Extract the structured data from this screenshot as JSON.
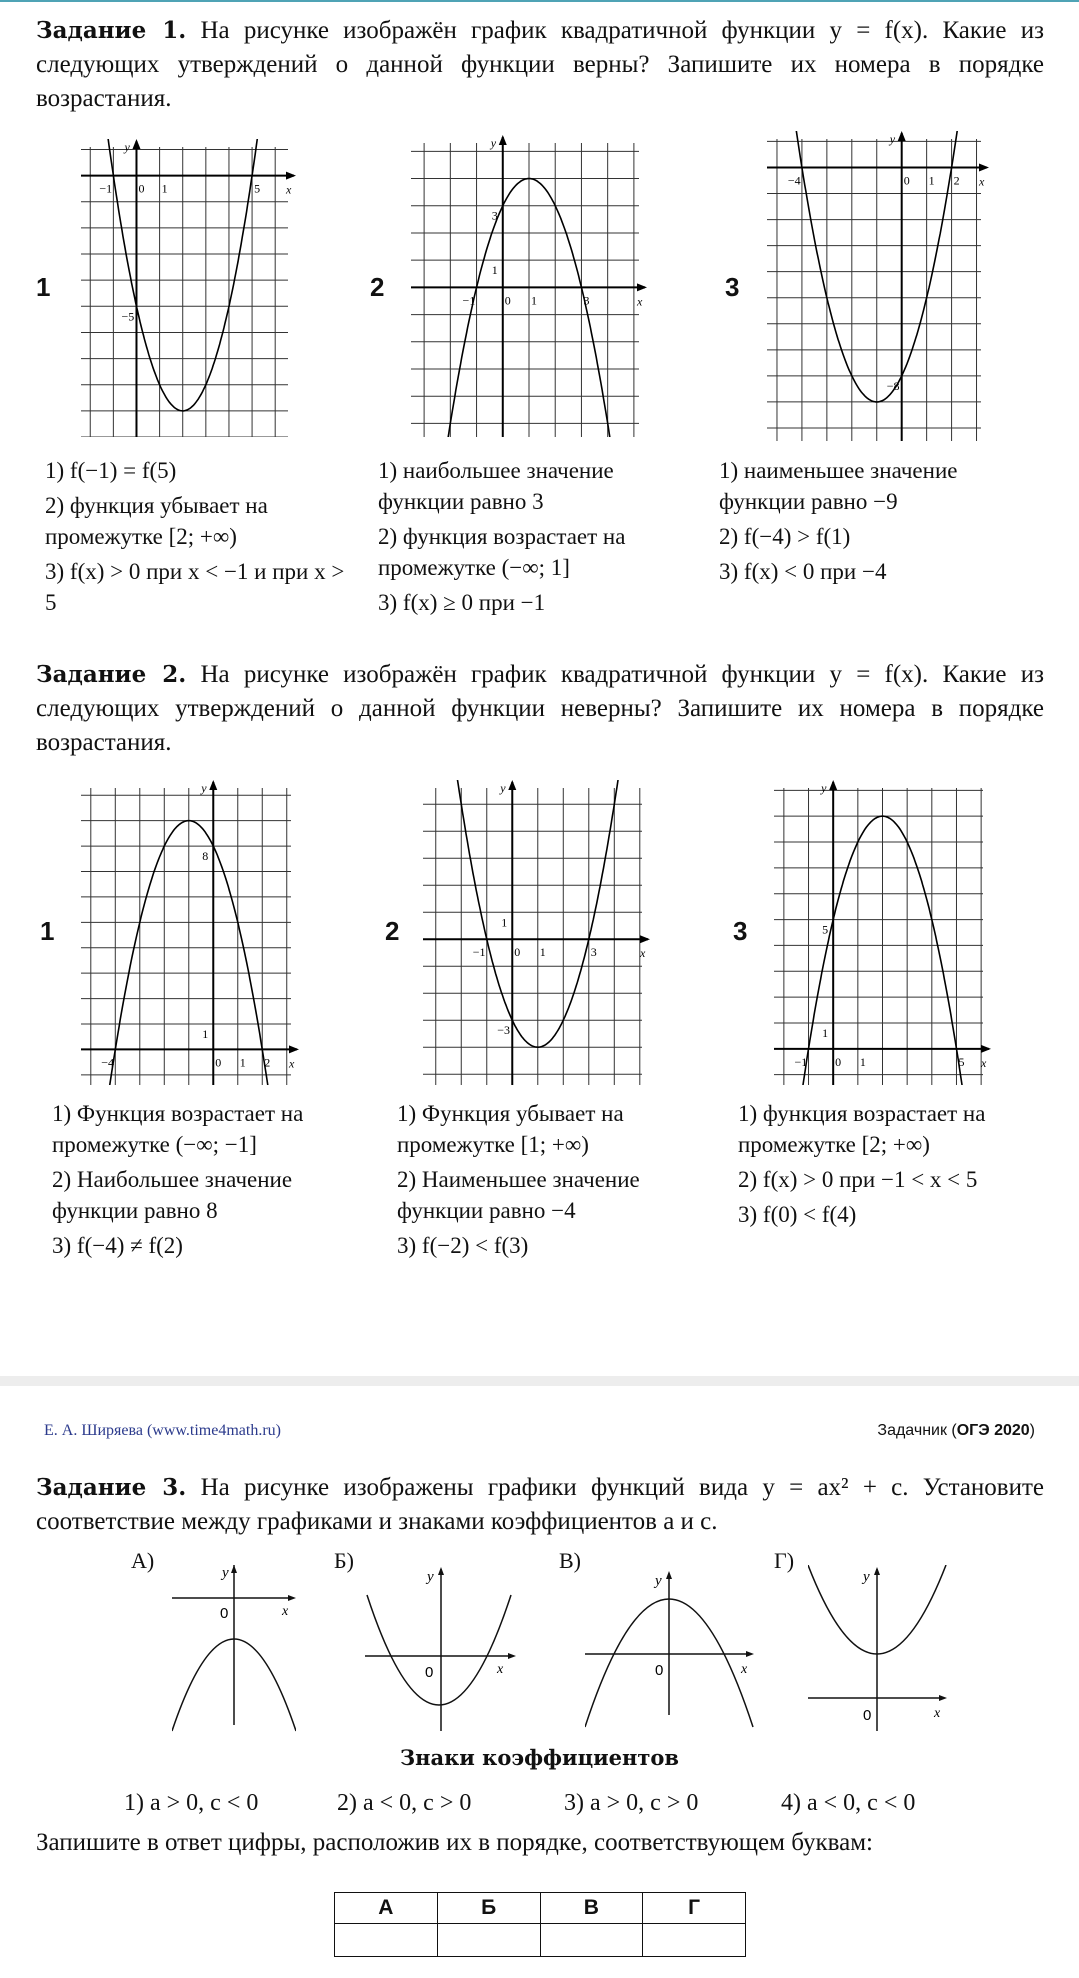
{
  "task1": {
    "title": "Задание 1.",
    "text": "На рисунке изображён график квадратичной функции y = f(x). Какие из следующих утверждений о данной функции верны? Запишите их номера в порядке возрастания.",
    "graphs": [
      {
        "label": "1",
        "a": 1,
        "b": -4,
        "c": -5,
        "xrange": [
          -2.4,
          6.9
        ],
        "yrange": [
          -10,
          1.4
        ],
        "xlabels": [
          "-1",
          "0",
          "1",
          "5"
        ],
        "ylabels": [
          "-5"
        ],
        "statements": [
          "1) f(−1) = f(5)",
          "2) функция убывает на промежутке [2; +∞)",
          "3) f(x) > 0 при x < −1 и при x > 5"
        ]
      },
      {
        "label": "2",
        "a": -1,
        "b": 2,
        "c": 3,
        "xrange": [
          -3.5,
          5.5
        ],
        "yrange": [
          -5.5,
          5.6
        ],
        "xlabels": [
          "-1",
          "0",
          "1",
          "3"
        ],
        "ylabels": [
          "3",
          "1"
        ],
        "statements": [
          "1) наибольшее значение функции равно 3",
          "2) функция возрастает на промежутке (−∞; 1]",
          "3) f(x) ≥ 0 при −1"
        ]
      },
      {
        "label": "3",
        "a": 1,
        "b": 2,
        "c": -8,
        "xrange": [
          -5.4,
          3.5
        ],
        "yrange": [
          -10.5,
          1.4
        ],
        "xlabels": [
          "-4",
          "0",
          "1",
          "2"
        ],
        "ylabels": [
          "-8"
        ],
        "statements": [
          "1) наименьшее значение функции равно −9",
          "2) f(−4) > f(1)",
          "3) f(x) < 0 при −4"
        ]
      }
    ]
  },
  "task2": {
    "title": "Задание 2.",
    "text": "На рисунке изображён график квадратичной функции y = f(x). Какие из следующих утверждений о данной функции неверны? Запишите их номера в порядке возрастания.",
    "graphs": [
      {
        "label": "1",
        "a": -1,
        "b": -2,
        "c": 8,
        "xrange": [
          -5.4,
          3.5
        ],
        "yrange": [
          -1.4,
          10.6
        ],
        "xlabels": [
          "-4",
          "0",
          "1",
          "2"
        ],
        "ylabels": [
          "8",
          "1"
        ],
        "statements": [
          "1) Функция возрастает на промежутке (−∞; −1]",
          "2) Наибольшее значение функции равно 8",
          "3) f(−4) ≠ f(2)"
        ]
      },
      {
        "label": "2",
        "a": 1,
        "b": -2,
        "c": -3,
        "xrange": [
          -3.5,
          5.4
        ],
        "yrange": [
          -5.4,
          5.9
        ],
        "xlabels": [
          "-1",
          "0",
          "1",
          "3"
        ],
        "ylabels": [
          "1",
          "-3"
        ],
        "statements": [
          "1) Функция убывает на промежутке [1; +∞)",
          "2) Наименьшее значение функции равно −4",
          "3) f(−2) < f(3)"
        ]
      },
      {
        "label": "3",
        "a": -1,
        "b": 4,
        "c": 5,
        "xrange": [
          -2.4,
          6.4
        ],
        "yrange": [
          -1.4,
          10.4
        ],
        "xlabels": [
          "-1",
          "0",
          "1",
          "5"
        ],
        "ylabels": [
          "5",
          "1"
        ],
        "statements": [
          "1) функция возрастает на промежутке [2; +∞)",
          "2) f(x) > 0 при −1 < x < 5",
          "3) f(0) < f(4)"
        ]
      }
    ]
  },
  "footer": {
    "left": "Е. А. Ширяева (www.time4math.ru)",
    "right_prefix": "Задачник (",
    "right_bold": "ОГЭ 2020",
    "right_suffix": ")"
  },
  "task3": {
    "title": "Задание 3.",
    "text": "На рисунке изображены графики функций вида y = ax² + c. Установите соответствие между графиками и знаками коэффициентов a и c.",
    "graph_letters": [
      "А)",
      "Б)",
      "В)",
      "Г)"
    ],
    "axis_labels": {
      "x": "x",
      "y": "y",
      "origin": "0"
    },
    "signs_title": "Знаки коэффициентов",
    "options": [
      "1) a > 0, c < 0",
      "2) a < 0, c > 0",
      "3) a > 0, c > 0",
      "4) a < 0, c < 0"
    ],
    "instruction": "Запишите в ответ цифры, расположив их в порядке, соответствующем буквам:",
    "table_headers": [
      "А",
      "Б",
      "В",
      "Г"
    ]
  }
}
